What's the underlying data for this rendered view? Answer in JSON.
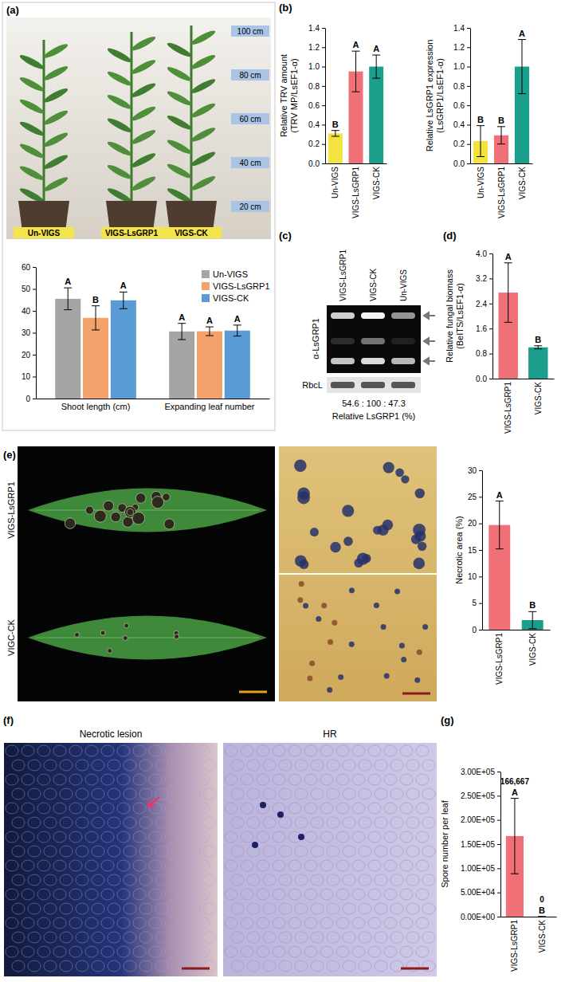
{
  "panel_labels": [
    "(a)",
    "(b)",
    "(c)",
    "(d)",
    "(e)",
    "(f)",
    "(g)"
  ],
  "photo_a": {
    "plants": [
      "Un-VIGS",
      "VIGS-LsGRP1",
      "VIGS-CK"
    ],
    "heights": [
      "100 cm",
      "80 cm",
      "60 cm",
      "40 cm",
      "20 cm"
    ]
  },
  "blot": {
    "lanes": [
      "VIGS-LsGRP1",
      "VIGS-CK",
      "Un-VIGS"
    ],
    "antibody": "α-LsGRP1",
    "loading_control": "RbcL",
    "ratios": "54.6 : 100 : 47.3",
    "caption": "Relative LsGRP1 (%)"
  },
  "photo_e": {
    "rows": [
      "VIGS-LsGRP1",
      "VIGC-CK"
    ]
  },
  "photo_f": {
    "titles": [
      "Necrotic lesion",
      "HR"
    ]
  },
  "chart_data": [
    {
      "type": "bar",
      "categories": [
        "Shoot length (cm)",
        "Expanding leaf number"
      ],
      "series": [
        {
          "name": "Un-VIGS",
          "color": "#a5a5a5",
          "values": [
            45.5,
            30.6
          ],
          "errors": [
            5.0,
            3.7
          ],
          "letters": [
            "A",
            "A"
          ]
        },
        {
          "name": "VIGS-LsGRP1",
          "color": "#f4a26c",
          "values": [
            36.8,
            30.7
          ],
          "errors": [
            5.5,
            2.0
          ],
          "letters": [
            "B",
            "A"
          ]
        },
        {
          "name": "VIGS-CK",
          "color": "#5b9bd5",
          "values": [
            44.8,
            31.0
          ],
          "errors": [
            3.8,
            2.5
          ],
          "letters": [
            "A",
            "A"
          ]
        }
      ],
      "ylim": [
        0,
        60
      ],
      "yticks": [
        0,
        10,
        20,
        30,
        40,
        50,
        60
      ],
      "legend": "top-right"
    },
    {
      "type": "bar",
      "y_label": [
        "Relative TRV amount",
        "(TRV MP/LsEF1-α)"
      ],
      "categories": [
        "Un-VIGS",
        "VIGS-LsGRP1",
        "VIGS-CK"
      ],
      "values": [
        0.31,
        0.95,
        1.0
      ],
      "errors": [
        0.03,
        0.21,
        0.12
      ],
      "letters": [
        "B",
        "A",
        "A"
      ],
      "colors": [
        "#f3e33f",
        "#f07078",
        "#1c9e8c"
      ],
      "ylim": [
        0,
        1.4
      ],
      "yticks": [
        {
          "value": 0,
          "label": "0.0"
        },
        0.2,
        0.4,
        0.6,
        0.8,
        {
          "value": 1,
          "label": "1.0"
        },
        1.2,
        1.4
      ]
    },
    {
      "type": "bar",
      "y_label": [
        "Relative LsGRP1 expression",
        "(LsGRP1/LsEF1-α)"
      ],
      "categories": [
        "Un-VIGS",
        "VIGS-LsGRP1",
        "VIGS-CK"
      ],
      "values": [
        0.23,
        0.29,
        1.0
      ],
      "errors": [
        0.16,
        0.09,
        0.28
      ],
      "letters": [
        "B",
        "B",
        "A"
      ],
      "colors": [
        "#f3e33f",
        "#f07078",
        "#1c9e8c"
      ],
      "ylim": [
        0,
        1.4
      ],
      "yticks": [
        {
          "value": 0,
          "label": "0.0"
        },
        0.2,
        0.4,
        0.6,
        0.8,
        {
          "value": 1,
          "label": "1.0"
        },
        1.2,
        1.4
      ]
    },
    {
      "type": "bar",
      "y_label": [
        "Relative fungal biomass",
        "(BeITS/LsEF1-α)"
      ],
      "categories": [
        "VIGS-LsGRP1",
        "VIGS-CK"
      ],
      "values": [
        2.75,
        1.0
      ],
      "errors": [
        0.95,
        0.05
      ],
      "letters": [
        "A",
        "B"
      ],
      "colors": [
        "#f07078",
        "#1c9e8c"
      ],
      "ylim": [
        0,
        4
      ],
      "yticks": [
        {
          "value": 0,
          "label": "0.0"
        },
        0.8,
        1.6,
        2.4,
        3.2,
        {
          "value": 4,
          "label": "4.0"
        }
      ]
    },
    {
      "type": "bar",
      "y_label": [
        "Necrotic area (%)"
      ],
      "categories": [
        "VIGS-LsGRP1",
        "VIGS-CK"
      ],
      "values": [
        19.7,
        1.8
      ],
      "errors": [
        4.5,
        1.6
      ],
      "letters": [
        "A",
        "B"
      ],
      "colors": [
        "#f07078",
        "#1c9e8c"
      ],
      "ylim": [
        0,
        30
      ],
      "yticks": [
        0,
        5,
        10,
        15,
        20,
        25,
        30
      ]
    },
    {
      "type": "bar",
      "y_label": [
        "Spore number per leaf"
      ],
      "categories": [
        "VIGS-LsGRP1",
        "VIGS-CK"
      ],
      "values": [
        166667,
        0
      ],
      "errors": [
        78000,
        0
      ],
      "letters": [
        "A",
        "B"
      ],
      "data_labels": true,
      "value_labels": [
        "166,667",
        "0"
      ],
      "colors": [
        "#f07078",
        "#1c9e8c"
      ],
      "ylim": [
        0,
        300000
      ],
      "yticks": [
        {
          "value": 0,
          "label": "0.00E+00"
        },
        {
          "value": 50000,
          "label": "5.00E+04"
        },
        {
          "value": 100000,
          "label": "1.00E+05"
        },
        {
          "value": 150000,
          "label": "1.50E+05"
        },
        {
          "value": 200000,
          "label": "2.00E+05"
        },
        {
          "value": 250000,
          "label": "2.50E+05"
        },
        {
          "value": 300000,
          "label": "3.00E+05"
        }
      ]
    }
  ]
}
